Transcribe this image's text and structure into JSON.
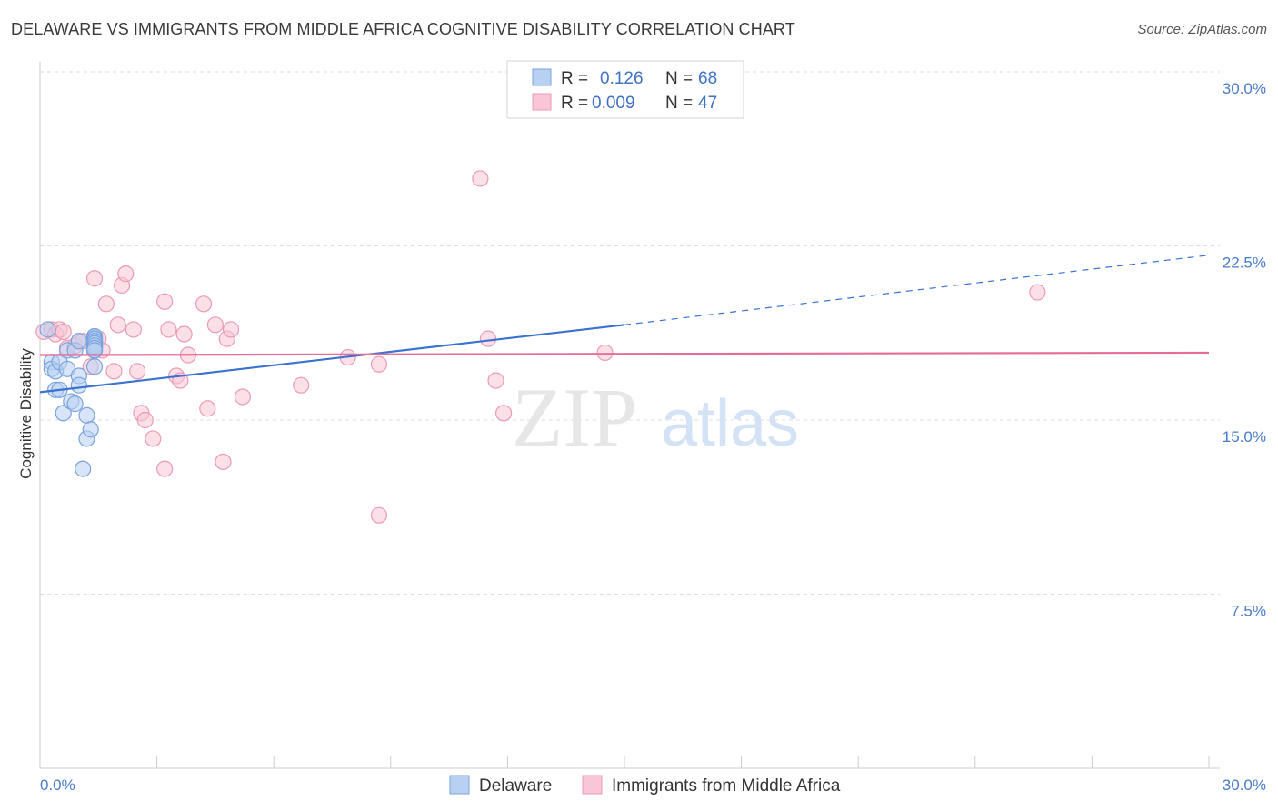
{
  "title": "DELAWARE VS IMMIGRANTS FROM MIDDLE AFRICA COGNITIVE DISABILITY CORRELATION CHART",
  "source": "Source: ZipAtlas.com",
  "watermark": {
    "zip": "ZIP",
    "atlas": "atlas"
  },
  "colors": {
    "delaware_fill": "#b8d0f2",
    "delaware_stroke": "#7aa3de",
    "delaware_line": "#3a72d0",
    "immigrants_fill": "#f8c6d6",
    "immigrants_stroke": "#ec9ab5",
    "immigrants_line": "#e56c93",
    "tick_label": "#4a7cc9",
    "grid": "#dddddd"
  },
  "legend": {
    "rows": [
      {
        "r_label": "R =",
        "r_value": "0.126",
        "n_label": "N =",
        "n_value": "68"
      },
      {
        "r_label": "R =",
        "r_value": "0.009",
        "n_label": "N =",
        "n_value": "47"
      }
    ]
  },
  "bottom_legend": [
    "Delaware",
    "Immigrants from Middle Africa"
  ],
  "chart_data": {
    "type": "scatter",
    "xlabel": "",
    "ylabel": "Cognitive Disability",
    "xlim": [
      0,
      30
    ],
    "ylim": [
      0,
      30
    ],
    "x_tick_labels": {
      "left": "0.0%",
      "right": "30.0%"
    },
    "y_ticks": [
      {
        "value": 7.5,
        "label": "7.5%"
      },
      {
        "value": 15,
        "label": "15.0%"
      },
      {
        "value": 22.5,
        "label": "22.5%"
      },
      {
        "value": 30,
        "label": "30.0%"
      }
    ],
    "series": [
      {
        "name": "Delaware",
        "points": [
          [
            0.2,
            18.9
          ],
          [
            0.3,
            17.5
          ],
          [
            0.3,
            17.2
          ],
          [
            0.4,
            16.3
          ],
          [
            0.4,
            17.1
          ],
          [
            0.5,
            17.5
          ],
          [
            0.5,
            16.3
          ],
          [
            0.6,
            15.3
          ],
          [
            0.7,
            17.2
          ],
          [
            0.7,
            18.0
          ],
          [
            0.8,
            15.8
          ],
          [
            0.9,
            15.7
          ],
          [
            0.9,
            18.0
          ],
          [
            1.0,
            18.4
          ],
          [
            1.0,
            16.9
          ],
          [
            1.0,
            16.5
          ],
          [
            1.1,
            12.9
          ],
          [
            1.2,
            15.2
          ],
          [
            1.2,
            14.2
          ],
          [
            1.3,
            14.6
          ],
          [
            1.4,
            17.3
          ],
          [
            1.4,
            18.3
          ],
          [
            1.4,
            18.2
          ],
          [
            1.4,
            18.0
          ],
          [
            1.4,
            18.5
          ],
          [
            1.4,
            18.4
          ],
          [
            1.4,
            18.6
          ],
          [
            1.4,
            18.5
          ],
          [
            1.4,
            18.3
          ],
          [
            1.4,
            18.2
          ],
          [
            1.4,
            18.1
          ],
          [
            1.4,
            18.3
          ],
          [
            1.4,
            18.4
          ],
          [
            1.4,
            18.0
          ],
          [
            1.4,
            18.1
          ],
          [
            1.4,
            18.2
          ],
          [
            1.4,
            18.0
          ],
          [
            1.4,
            18.4
          ],
          [
            1.4,
            18.5
          ],
          [
            1.4,
            18.6
          ],
          [
            1.4,
            18.3
          ],
          [
            1.4,
            18.2
          ],
          [
            1.4,
            18.1
          ],
          [
            1.4,
            18.0
          ],
          [
            1.4,
            18.4
          ],
          [
            1.4,
            18.5
          ],
          [
            1.4,
            18.3
          ],
          [
            1.4,
            18.2
          ],
          [
            1.4,
            18.1
          ],
          [
            1.4,
            18.0
          ],
          [
            1.4,
            18.4
          ],
          [
            1.4,
            18.6
          ],
          [
            1.4,
            18.5
          ],
          [
            1.4,
            18.3
          ],
          [
            1.4,
            18.2
          ],
          [
            1.4,
            18.1
          ],
          [
            1.4,
            18.0
          ],
          [
            1.4,
            18.4
          ],
          [
            1.4,
            18.3
          ],
          [
            1.4,
            18.2
          ],
          [
            1.4,
            18.1
          ],
          [
            1.4,
            18.0
          ],
          [
            1.4,
            18.5
          ],
          [
            1.4,
            18.4
          ],
          [
            1.4,
            18.3
          ],
          [
            1.4,
            18.2
          ],
          [
            1.4,
            18.1
          ],
          [
            1.4,
            18.0
          ]
        ]
      },
      {
        "name": "Immigrants from Middle Africa",
        "points": [
          [
            0.1,
            18.8
          ],
          [
            0.3,
            18.9
          ],
          [
            0.4,
            18.7
          ],
          [
            0.5,
            18.9
          ],
          [
            0.6,
            18.8
          ],
          [
            0.7,
            18.1
          ],
          [
            0.9,
            18.2
          ],
          [
            1.0,
            18.4
          ],
          [
            1.1,
            18.4
          ],
          [
            1.3,
            17.3
          ],
          [
            1.4,
            21.1
          ],
          [
            1.5,
            18.5
          ],
          [
            1.6,
            18.0
          ],
          [
            1.7,
            20.0
          ],
          [
            1.9,
            17.1
          ],
          [
            2.0,
            19.1
          ],
          [
            2.1,
            20.8
          ],
          [
            2.2,
            21.3
          ],
          [
            2.4,
            18.9
          ],
          [
            2.5,
            17.1
          ],
          [
            2.6,
            15.3
          ],
          [
            2.7,
            15.0
          ],
          [
            2.9,
            14.2
          ],
          [
            3.2,
            20.1
          ],
          [
            3.2,
            12.9
          ],
          [
            3.3,
            18.9
          ],
          [
            3.5,
            16.9
          ],
          [
            3.6,
            16.7
          ],
          [
            3.7,
            18.7
          ],
          [
            3.8,
            17.8
          ],
          [
            4.2,
            20.0
          ],
          [
            4.3,
            15.5
          ],
          [
            4.5,
            19.1
          ],
          [
            4.7,
            13.2
          ],
          [
            4.8,
            18.5
          ],
          [
            4.9,
            18.9
          ],
          [
            5.2,
            16.0
          ],
          [
            6.7,
            16.5
          ],
          [
            7.9,
            17.7
          ],
          [
            8.7,
            10.9
          ],
          [
            8.7,
            17.4
          ],
          [
            11.3,
            25.4
          ],
          [
            11.5,
            18.5
          ],
          [
            11.7,
            16.7
          ],
          [
            11.9,
            15.3
          ],
          [
            14.5,
            17.9
          ],
          [
            25.6,
            20.5
          ]
        ]
      }
    ],
    "trend_lines": [
      {
        "name": "Delaware",
        "x0": 0.0,
        "y0": 16.2,
        "x1": 15.0,
        "y1": 19.1,
        "dashed_to_x": 30.0,
        "dashed_to_y": 22.1
      },
      {
        "name": "Immigrants from Middle Africa",
        "x0": 0.0,
        "y0": 17.8,
        "x1": 30.0,
        "y1": 17.9
      }
    ]
  }
}
